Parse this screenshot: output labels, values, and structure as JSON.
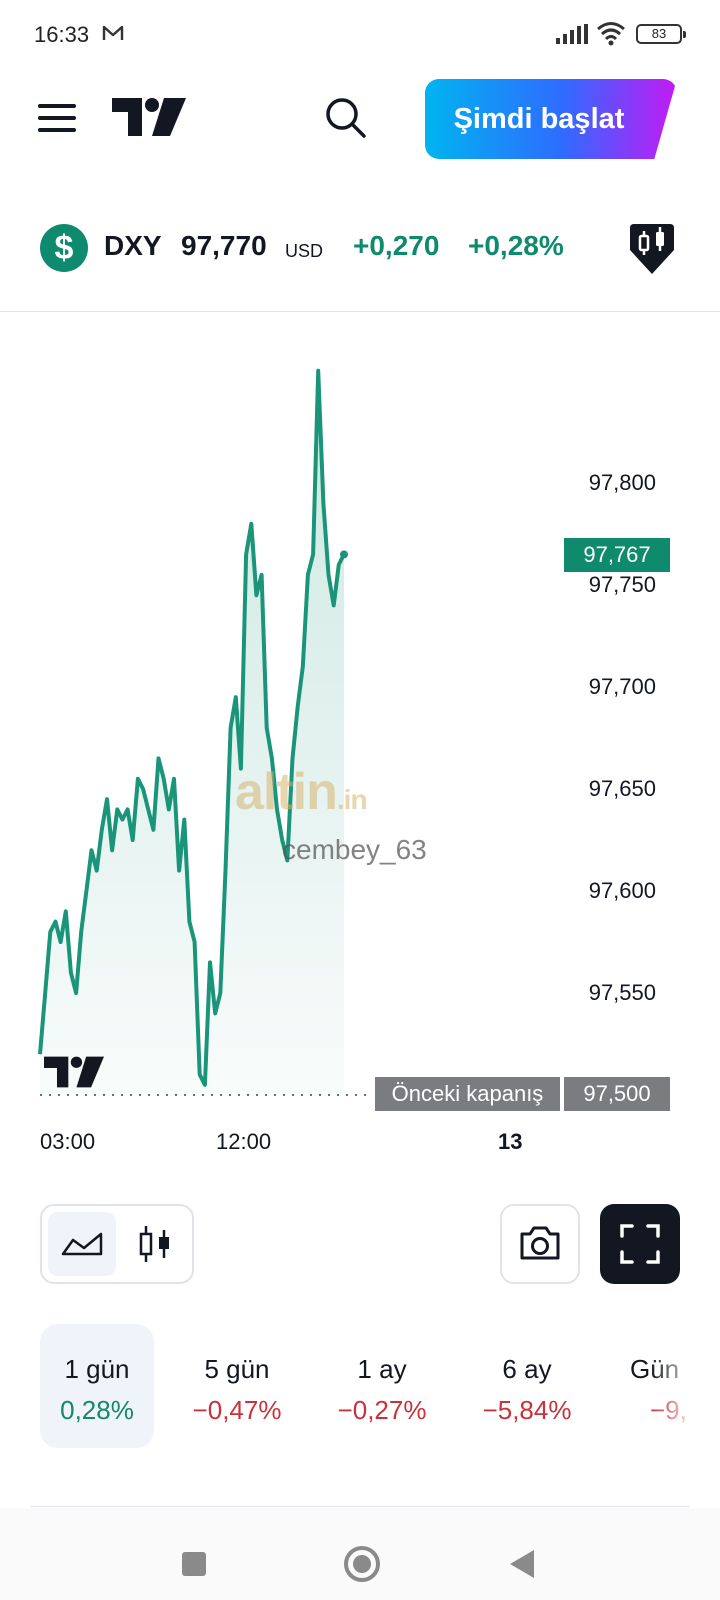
{
  "status_bar": {
    "time": "16:33",
    "battery": "83"
  },
  "header": {
    "start_button": "Şimdi başlat"
  },
  "symbol": {
    "name": "DXY",
    "price": "97,770",
    "currency": "USD",
    "change_abs": "+0,270",
    "change_pct": "+0,28%",
    "icon": "dollar-icon",
    "accent_color": "#0f8a6c"
  },
  "chart": {
    "y_axis_labels": [
      "97,800",
      "97,750",
      "97,700",
      "97,650",
      "97,600",
      "97,550"
    ],
    "x_axis_labels": [
      "03:00",
      "12:00",
      "13"
    ],
    "last_price_tag": "97,767",
    "prev_close_label": "Önceki kapanış",
    "prev_close_value": "97,500",
    "watermark": "altin",
    "watermark_suffix": ".in",
    "watermark_user": "cembey_63",
    "line_color": "#1a957a"
  },
  "chart_data": {
    "type": "area",
    "title": "",
    "xlabel": "",
    "ylabel": "",
    "ylim": [
      97.49,
      97.84
    ],
    "x_ticks": [
      "03:00",
      "12:00",
      "13"
    ],
    "prev_close": 97.5,
    "last": 97.767,
    "series": [
      {
        "values": [
          97.52,
          97.55,
          97.58,
          97.585,
          97.575,
          97.59,
          97.56,
          97.55,
          97.58,
          97.6,
          97.62,
          97.61,
          97.63,
          97.645,
          97.62,
          97.64,
          97.635,
          97.64,
          97.625,
          97.655,
          97.65,
          97.64,
          97.63,
          97.665,
          97.655,
          97.64,
          97.655,
          97.61,
          97.635,
          97.585,
          97.575,
          97.51,
          97.505,
          97.565,
          97.54,
          97.55,
          97.61,
          97.68,
          97.695,
          97.66,
          97.765,
          97.78,
          97.745,
          97.755,
          97.68,
          97.665,
          97.64,
          97.625,
          97.615,
          97.665,
          97.69,
          97.71,
          97.755,
          97.765,
          97.855,
          97.79,
          97.755,
          97.74,
          97.76,
          97.765
        ]
      }
    ]
  },
  "controls": {
    "chart_types": [
      "area-chart-icon",
      "candles-icon"
    ]
  },
  "periods": [
    {
      "label": "1 gün",
      "value": "0,28%",
      "trend": "pos"
    },
    {
      "label": "5 gün",
      "value": "−0,47%",
      "trend": "neg"
    },
    {
      "label": "1 ay",
      "value": "−0,27%",
      "trend": "neg"
    },
    {
      "label": "6 ay",
      "value": "−5,84%",
      "trend": "neg"
    },
    {
      "label": "Gün",
      "value": "−9,",
      "trend": "neg"
    }
  ]
}
